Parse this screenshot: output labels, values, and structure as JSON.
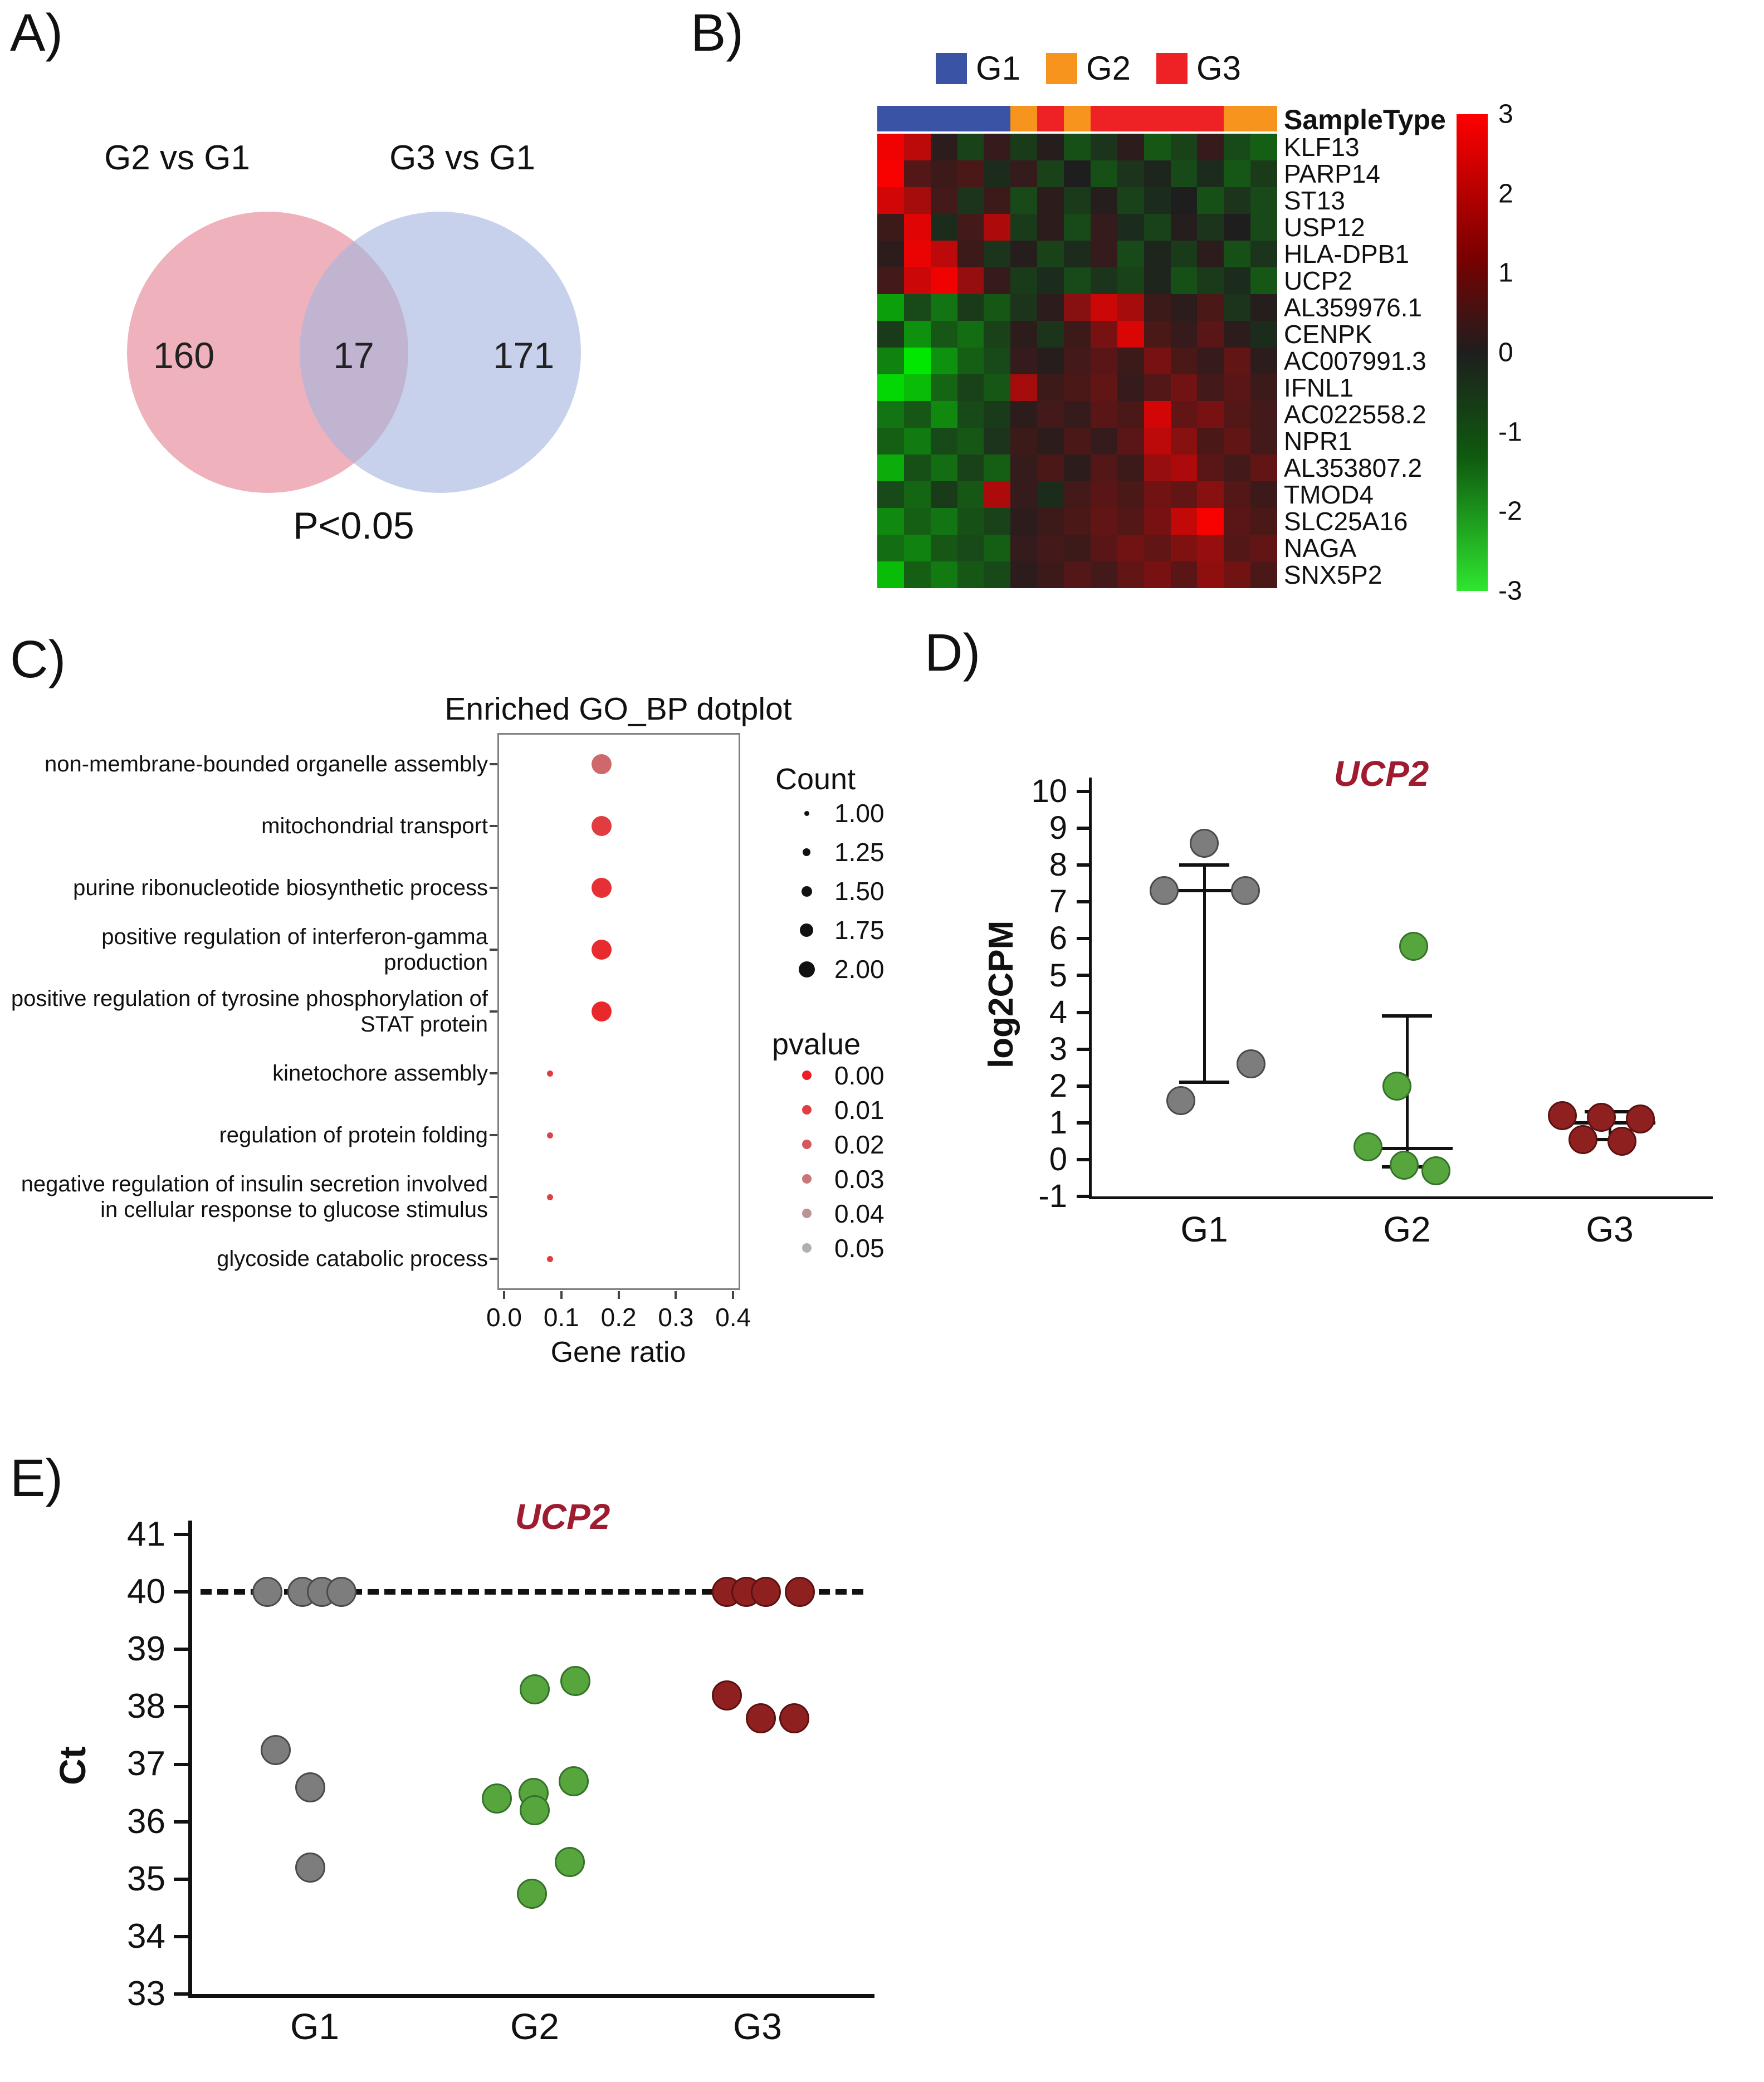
{
  "panels": {
    "A": {
      "label": "A)",
      "venn": {
        "left_title": "G2 vs G1",
        "right_title": "G3 vs G1",
        "left_count": "160",
        "overlap_count": "17",
        "right_count": "171",
        "caption": "P<0.05"
      }
    },
    "B": {
      "label": "B)",
      "legend": [
        {
          "label": "G1",
          "color": "#3a53a4"
        },
        {
          "label": "G2",
          "color": "#f7941e"
        },
        {
          "label": "G3",
          "color": "#ee2224"
        }
      ],
      "annotation_title": "SampleType"
    },
    "C": {
      "label": "C)"
    },
    "D": {
      "label": "D)"
    },
    "E": {
      "label": "E)"
    }
  },
  "chart_data": [
    {
      "id": "venn",
      "type": "venn",
      "sets": [
        {
          "name": "G2 vs G1",
          "unique": 160
        },
        {
          "name": "G3 vs G1",
          "unique": 171
        }
      ],
      "overlap": 17,
      "caption": "P<0.05",
      "colors": {
        "left": "#eca4b0",
        "right": "#a4b5de"
      }
    },
    {
      "id": "heatmap",
      "type": "heatmap",
      "legend_title": "SampleType",
      "groups": {
        "G1": "#3a53a4",
        "G2": "#f7941e",
        "G3": "#ee2224"
      },
      "column_groups": [
        "G1",
        "G1",
        "G1",
        "G1",
        "G1",
        "G2",
        "G3",
        "G2",
        "G3",
        "G3",
        "G3",
        "G3",
        "G3",
        "G2",
        "G2"
      ],
      "genes": [
        "KLF13",
        "PARP14",
        "ST13",
        "USP12",
        "HLA-DPB1",
        "UCP2",
        "AL359976.1",
        "CENPK",
        "AC007991.3",
        "IFNL1",
        "AC022558.2",
        "NPR1",
        "AL353807.2",
        "TMOD4",
        "SLC25A16",
        "NAGA",
        "SNX5P2"
      ],
      "values": [
        [
          2.8,
          2.1,
          0.2,
          -0.5,
          0.3,
          -0.4,
          0.1,
          -0.7,
          -0.3,
          0.2,
          -0.8,
          -0.5,
          0.3,
          -0.6,
          -0.9
        ],
        [
          2.9,
          0.7,
          0.4,
          0.6,
          -0.2,
          0.3,
          -0.5,
          0.0,
          -0.7,
          -0.3,
          -0.1,
          -0.6,
          -0.2,
          -0.8,
          -0.4
        ],
        [
          2.4,
          1.8,
          0.5,
          -0.3,
          0.4,
          -0.6,
          0.2,
          -0.4,
          0.1,
          -0.5,
          -0.2,
          0.0,
          -0.7,
          -0.3,
          -0.6
        ],
        [
          0.4,
          2.6,
          -0.2,
          0.5,
          1.9,
          -0.4,
          0.2,
          -0.6,
          0.3,
          -0.2,
          -0.5,
          0.1,
          -0.3,
          0.0,
          -0.6
        ],
        [
          0.2,
          2.7,
          2.1,
          0.4,
          -0.3,
          0.1,
          -0.5,
          -0.2,
          0.3,
          -0.6,
          -0.1,
          -0.4,
          0.2,
          -0.7,
          -0.3
        ],
        [
          0.5,
          2.3,
          2.8,
          1.6,
          0.3,
          -0.4,
          -0.2,
          -0.6,
          -0.3,
          -0.5,
          -0.1,
          -0.7,
          -0.4,
          -0.2,
          -0.8
        ],
        [
          -1.8,
          -0.6,
          -1.2,
          -0.4,
          -0.8,
          -0.3,
          0.2,
          1.4,
          2.3,
          1.8,
          0.4,
          0.2,
          0.6,
          -0.3,
          0.1
        ],
        [
          -0.4,
          -1.6,
          -0.8,
          -1.1,
          -0.5,
          0.2,
          -0.3,
          0.4,
          1.2,
          2.5,
          0.6,
          0.3,
          0.8,
          0.2,
          -0.2
        ],
        [
          -1.4,
          -2.8,
          -1.6,
          -0.9,
          -0.6,
          0.3,
          0.1,
          0.5,
          0.8,
          0.4,
          1.2,
          0.6,
          0.3,
          0.9,
          0.2
        ],
        [
          -2.6,
          -2.2,
          -1.0,
          -0.5,
          -0.8,
          1.8,
          0.4,
          0.6,
          0.9,
          0.3,
          0.7,
          1.1,
          0.5,
          0.8,
          0.4
        ],
        [
          -1.2,
          -0.8,
          -1.5,
          -0.6,
          -0.4,
          0.2,
          0.5,
          0.3,
          0.8,
          0.6,
          2.4,
          0.9,
          1.2,
          0.7,
          0.5
        ],
        [
          -0.9,
          -1.3,
          -0.6,
          -0.8,
          -0.3,
          0.4,
          0.2,
          0.6,
          0.3,
          0.8,
          2.1,
          1.4,
          0.6,
          0.9,
          0.5
        ],
        [
          -2.0,
          -0.7,
          -1.1,
          -0.5,
          -0.9,
          0.3,
          0.6,
          0.2,
          0.7,
          0.4,
          1.6,
          1.9,
          0.8,
          0.5,
          0.9
        ],
        [
          -0.6,
          -1.0,
          -0.4,
          -0.8,
          1.9,
          0.3,
          -0.2,
          0.5,
          0.8,
          0.6,
          1.1,
          0.9,
          1.4,
          0.7,
          0.4
        ],
        [
          -1.5,
          -0.9,
          -1.2,
          -0.7,
          -0.5,
          0.2,
          0.4,
          0.6,
          0.9,
          0.7,
          1.2,
          2.2,
          2.9,
          0.8,
          0.6
        ],
        [
          -1.1,
          -1.4,
          -0.8,
          -0.6,
          -0.9,
          0.3,
          0.5,
          0.4,
          0.8,
          1.1,
          0.9,
          1.3,
          1.6,
          0.7,
          0.9
        ],
        [
          -2.2,
          -0.9,
          -1.3,
          -0.8,
          -0.6,
          0.2,
          0.4,
          0.7,
          0.5,
          0.9,
          1.2,
          0.8,
          1.5,
          1.1,
          0.6
        ]
      ],
      "scale": {
        "min": -3,
        "max": 3,
        "ticks": [
          "3",
          "2",
          "1",
          "0",
          "-1",
          "-2",
          "-3"
        ]
      }
    },
    {
      "id": "go_dotplot",
      "type": "scatter",
      "title": "Enriched GO_BP dotplot",
      "xlabel": "Gene ratio",
      "xlim": [
        0,
        0.42
      ],
      "xticks": [
        "0.0",
        "0.1",
        "0.2",
        "0.3",
        "0.4"
      ],
      "terms": [
        {
          "label": "non-membrane-bounded organelle assembly",
          "gene_ratio": 0.17,
          "count": 2,
          "pvalue": 0.025
        },
        {
          "label": "mitochondrial transport",
          "gene_ratio": 0.17,
          "count": 2,
          "pvalue": 0.01
        },
        {
          "label": "purine ribonucleotide biosynthetic process",
          "gene_ratio": 0.17,
          "count": 2,
          "pvalue": 0.006
        },
        {
          "label": "positive regulation of interferon-gamma production",
          "gene_ratio": 0.17,
          "count": 2,
          "pvalue": 0.004
        },
        {
          "label": "positive regulation of tyrosine phosphorylation of STAT protein",
          "gene_ratio": 0.17,
          "count": 2,
          "pvalue": 0.003
        },
        {
          "label": "kinetochore assembly",
          "gene_ratio": 0.08,
          "count": 1,
          "pvalue": 0.01
        },
        {
          "label": "regulation of protein folding",
          "gene_ratio": 0.08,
          "count": 1,
          "pvalue": 0.012
        },
        {
          "label": "negative regulation of insulin secretion involved in cellular response to glucose stimulus",
          "gene_ratio": 0.08,
          "count": 1,
          "pvalue": 0.012
        },
        {
          "label": "glycoside catabolic process",
          "gene_ratio": 0.08,
          "count": 1,
          "pvalue": 0.01
        }
      ],
      "count_legend": {
        "title": "Count",
        "items": [
          "1.00",
          "1.25",
          "1.50",
          "1.75",
          "2.00"
        ]
      },
      "pvalue_legend": {
        "title": "pvalue",
        "items": [
          "0.00",
          "0.01",
          "0.02",
          "0.03",
          "0.04",
          "0.05"
        ]
      }
    },
    {
      "id": "ucp2_log2cpm",
      "type": "scatter",
      "title": "UCP2",
      "ylabel": "log2CPM",
      "ylim": [
        -1,
        10
      ],
      "yticks": [
        "10",
        "9",
        "8",
        "7",
        "6",
        "5",
        "4",
        "3",
        "2",
        "1",
        "0",
        "-1"
      ],
      "groups": [
        {
          "name": "G1",
          "color": "#7d7d7d",
          "edge": "#4a4a4a",
          "values": [
            8.6,
            7.3,
            7.3,
            2.6,
            1.6
          ],
          "jitter": [
            0,
            -72,
            74,
            84,
            -42
          ],
          "median": 7.3,
          "whisker_low": 2.1,
          "whisker_high": 8.0
        },
        {
          "name": "G2",
          "color": "#57a63d",
          "edge": "#35712a",
          "values": [
            5.8,
            2.0,
            0.35,
            -0.15,
            -0.3
          ],
          "jitter": [
            12,
            -18,
            -70,
            -5,
            52
          ],
          "median": 0.3,
          "whisker_low": -0.2,
          "whisker_high": 3.9
        },
        {
          "name": "G3",
          "color": "#8e2020",
          "edge": "#5a1111",
          "values": [
            1.2,
            1.15,
            1.1,
            0.55,
            0.5
          ],
          "jitter": [
            -85,
            -15,
            55,
            -48,
            22
          ],
          "median": 1.0,
          "whisker_low": 0.55,
          "whisker_high": 1.3
        }
      ]
    },
    {
      "id": "ucp2_ct",
      "type": "scatter",
      "title": "UCP2",
      "ylabel": "Ct",
      "ylim": [
        33,
        41
      ],
      "yticks": [
        "41",
        "40",
        "39",
        "38",
        "37",
        "36",
        "35",
        "34",
        "33"
      ],
      "dashed_line": 40,
      "groups": [
        {
          "name": "G1",
          "color": "#7d7d7d",
          "edge": "#4a4a4a",
          "values": [
            40,
            40,
            40,
            40,
            37.25,
            36.6,
            35.2
          ],
          "jitter": [
            -85,
            -22,
            13,
            48,
            -70,
            -8,
            -8
          ]
        },
        {
          "name": "G2",
          "color": "#57a63d",
          "edge": "#35712a",
          "values": [
            38.3,
            38.45,
            36.7,
            36.5,
            36.4,
            36.2,
            35.3,
            34.75
          ],
          "jitter": [
            0,
            73,
            70,
            -2,
            -68,
            0,
            63,
            -5
          ]
        },
        {
          "name": "G3",
          "color": "#8e2020",
          "edge": "#5a1111",
          "values": [
            40,
            40,
            40,
            40,
            38.2,
            37.8,
            37.8
          ],
          "jitter": [
            -55,
            -20,
            15,
            76,
            -55,
            6,
            66
          ]
        }
      ]
    }
  ]
}
